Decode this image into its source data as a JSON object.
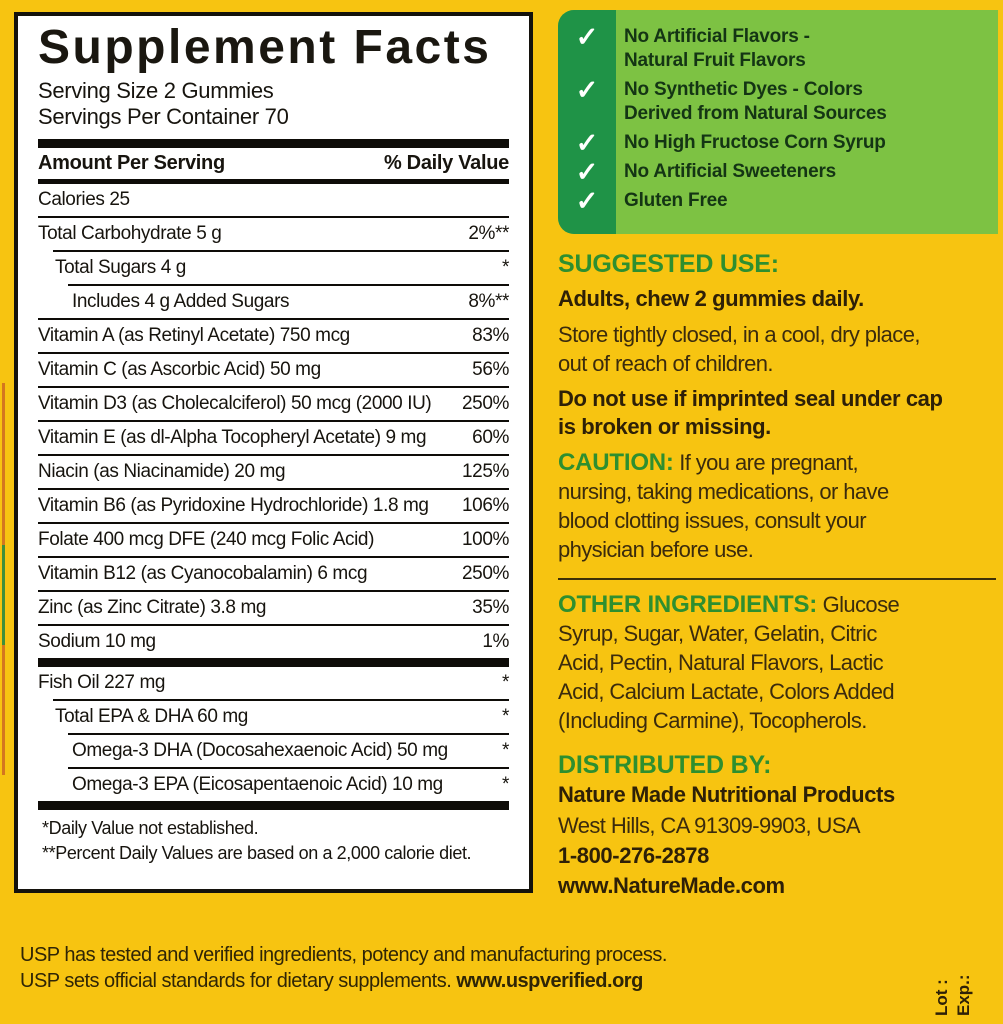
{
  "colors": {
    "background_yellow": "#F7C411",
    "claims_light_green": "#7DC243",
    "claims_dark_green": "#1F9347",
    "heading_green": "#2E8F2F",
    "body_brown": "#3B2B0D",
    "table_black": "#0E0C08"
  },
  "panel": {
    "title": "Supplement Facts",
    "serving_size": "Serving Size 2 Gummies",
    "servings_per_container": "Servings Per Container 70",
    "col_left": "Amount Per Serving",
    "col_right": "% Daily Value",
    "rows": [
      {
        "label": "Calories  25",
        "value": "",
        "indent": 0,
        "sep": "none"
      },
      {
        "label": "Total Carbohydrate  5 g",
        "value": "2%**",
        "indent": 0,
        "sep": "thin"
      },
      {
        "label": "Total Sugars  4 g",
        "value": "*",
        "indent": 1,
        "sep": "thin"
      },
      {
        "label": "Includes  4 g Added Sugars",
        "value": "8%**",
        "indent": 2,
        "sep": "thin"
      },
      {
        "label": "Vitamin A (as Retinyl Acetate)  750 mcg",
        "value": "83%",
        "indent": 0,
        "sep": "thin"
      },
      {
        "label": "Vitamin C (as Ascorbic Acid)  50 mg",
        "value": "56%",
        "indent": 0,
        "sep": "thin"
      },
      {
        "label": "Vitamin D3 (as Cholecalciferol)  50 mcg (2000 IU)",
        "value": "250%",
        "indent": 0,
        "sep": "thin"
      },
      {
        "label": "Vitamin E (as dl-Alpha Tocopheryl Acetate)  9 mg",
        "value": "60%",
        "indent": 0,
        "sep": "thin"
      },
      {
        "label": "Niacin (as Niacinamide)  20 mg",
        "value": "125%",
        "indent": 0,
        "sep": "thin"
      },
      {
        "label": "Vitamin B6 (as Pyridoxine Hydrochloride)  1.8 mg",
        "value": "106%",
        "indent": 0,
        "sep": "thin"
      },
      {
        "label": "Folate  400 mcg DFE (240 mcg Folic Acid)",
        "value": "100%",
        "indent": 0,
        "sep": "thin"
      },
      {
        "label": "Vitamin B12 (as Cyanocobalamin)  6 mcg",
        "value": "250%",
        "indent": 0,
        "sep": "thin"
      },
      {
        "label": "Zinc (as Zinc Citrate)  3.8 mg",
        "value": "35%",
        "indent": 0,
        "sep": "thin"
      },
      {
        "label": "Sodium  10  mg",
        "value": "1%",
        "indent": 0,
        "sep": "thin"
      },
      {
        "label": "Fish Oil  227 mg",
        "value": "*",
        "indent": 0,
        "sep": "thick"
      },
      {
        "label": "Total EPA & DHA  60 mg",
        "value": "*",
        "indent": 1,
        "sep": "thin"
      },
      {
        "label": "Omega-3 DHA (Docosahexaenoic Acid)  50 mg",
        "value": "*",
        "indent": 2,
        "sep": "thin"
      },
      {
        "label": "Omega-3 EPA (Eicosapentaenoic Acid)  10 mg",
        "value": "*",
        "indent": 2,
        "sep": "thin"
      }
    ],
    "footnotes": [
      "*Daily Value not established.",
      "**Percent Daily Values are based on a 2,000 calorie diet."
    ]
  },
  "claims": {
    "check_icon": "✓",
    "items": [
      "No Artificial Flavors -\nNatural Fruit Flavors",
      "No Synthetic Dyes - Colors\nDerived from Natural Sources",
      "No High Fructose Corn Syrup",
      "No Artificial Sweeteners",
      "Gluten Free"
    ]
  },
  "usage": {
    "heading": "SUGGESTED USE:",
    "dose": "Adults, chew 2 gummies daily.",
    "storage": "Store tightly closed, in a cool, dry place,\nout of reach of children.",
    "seal": "Do not use if imprinted seal under cap\nis broken or missing.",
    "caution_label": "CAUTION:",
    "caution_text": "If you are pregnant,\nnursing, taking medications, or have\nblood clotting issues, consult your\nphysician before use."
  },
  "other_ingredients": {
    "label": "OTHER INGREDIENTS:",
    "text": "Glucose\nSyrup, Sugar, Water, Gelatin, Citric\nAcid, Pectin, Natural Flavors, Lactic\nAcid, Calcium Lactate, Colors Added\n(Including Carmine), Tocopherols."
  },
  "distributor": {
    "heading": "DISTRIBUTED BY:",
    "name": "Nature Made Nutritional Products",
    "address": "West Hills, CA 91309-9903, USA",
    "phone": "1-800-276-2878",
    "website": "www.NatureMade.com"
  },
  "usp": {
    "line1": "USP has tested and verified ingredients, potency and manufacturing process.",
    "line2": "USP sets official standards for dietary supplements. ",
    "link": "www.uspverified.org"
  },
  "lot_exp": {
    "lot": "Lot :",
    "exp": "Exp.:"
  }
}
